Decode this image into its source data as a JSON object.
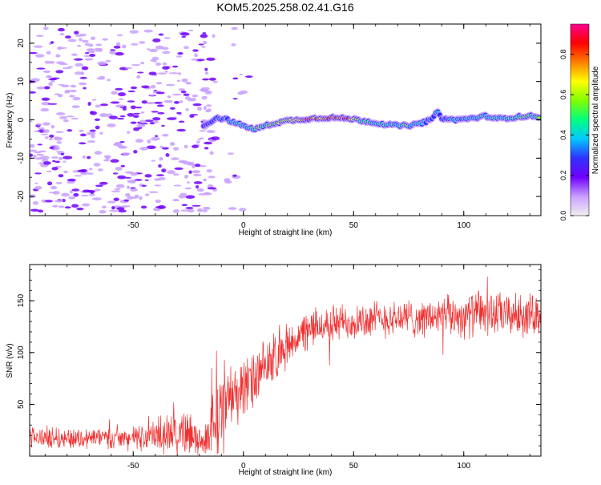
{
  "figure_title": "KOM5.2025.258.02.41.G16",
  "colors": {
    "snr_line": "#f03030",
    "colormap": [
      "#f0f0f0",
      "#c8a0ff",
      "#7000ff",
      "#3030ff",
      "#00c8ff",
      "#00ff80",
      "#80ff00",
      "#ffff00",
      "#ff8000",
      "#ff0000",
      "#ff0090"
    ]
  },
  "chart_data": [
    {
      "type": "heatmap",
      "title": "KOM5.2025.258.02.41.G16",
      "xlabel": "Height of straight line (km)",
      "ylabel": "Frequency (Hz)",
      "xlim": [
        -97,
        135
      ],
      "ylim": [
        -25,
        25
      ],
      "x_ticks": [
        -50,
        0,
        50,
        100
      ],
      "x_tick_labels": [
        "-50",
        "0",
        "50",
        "100"
      ],
      "y_ticks": [
        -20,
        -10,
        0,
        10,
        20
      ],
      "y_tick_labels": [
        "-20",
        "-10",
        "0",
        "10",
        "20"
      ],
      "colorbar": {
        "label": "Normalized spectral amplitude",
        "range": [
          0,
          0.95
        ],
        "ticks": [
          0,
          0.2,
          0.4,
          0.6,
          0.8
        ],
        "tick_labels": [
          "0.0",
          "0.2",
          "0.4",
          "0.6",
          "0.8"
        ]
      },
      "ridge": {
        "x": [
          -18,
          -15,
          -12,
          -8,
          -4,
          0,
          5,
          10,
          15,
          20,
          25,
          30,
          35,
          40,
          45,
          50,
          55,
          60,
          65,
          70,
          75,
          80,
          85,
          88,
          90,
          95,
          100,
          105,
          110,
          115,
          120,
          125,
          130,
          135
        ],
        "freq": [
          -1.5,
          -0.5,
          0.5,
          0.2,
          -0.8,
          -1.5,
          -2.5,
          -1.5,
          -0.8,
          -0.2,
          0,
          0.3,
          0.5,
          0.6,
          0.4,
          0.2,
          -0.3,
          -0.8,
          -1.2,
          -1.5,
          -1.5,
          -1,
          0,
          2,
          0.5,
          0,
          0.2,
          0.5,
          1,
          0.3,
          0.5,
          0.8,
          1,
          0.8
        ],
        "amplitude": [
          0.2,
          0.25,
          0.3,
          0.35,
          0.4,
          0.45,
          0.5,
          0.5,
          0.55,
          0.6,
          0.65,
          0.85,
          0.7,
          0.85,
          0.88,
          0.6,
          0.55,
          0.45,
          0.45,
          0.45,
          0.5,
          0.45,
          0.3,
          0.35,
          0.3,
          0.35,
          0.35,
          0.4,
          0.45,
          0.4,
          0.45,
          0.5,
          0.55,
          0.45
        ]
      }
    },
    {
      "type": "line",
      "xlabel": "Height of straight line (km)",
      "ylabel": "SNR (v/v)",
      "xlim": [
        -97,
        135
      ],
      "ylim": [
        0,
        185
      ],
      "x_ticks": [
        -50,
        0,
        50,
        100
      ],
      "x_tick_labels": [
        "-50",
        "0",
        "50",
        "100"
      ],
      "y_ticks": [
        50,
        100,
        150
      ],
      "y_tick_labels": [
        "50",
        "100",
        "150"
      ],
      "series": [
        {
          "name": "SNR",
          "x": [
            -97,
            -85,
            -75,
            -65,
            -55,
            -45,
            -40,
            -35,
            -30,
            -25,
            -20,
            -18,
            -15,
            -12,
            -10,
            -5,
            0,
            5,
            10,
            15,
            20,
            25,
            30,
            35,
            40,
            50,
            60,
            70,
            80,
            90,
            100,
            110,
            120,
            130,
            135
          ],
          "mean": [
            18,
            18,
            17,
            18,
            17,
            18,
            20,
            22,
            24,
            22,
            15,
            12,
            25,
            40,
            45,
            60,
            65,
            72,
            85,
            95,
            108,
            115,
            122,
            126,
            128,
            130,
            132,
            134,
            133,
            135,
            136,
            138,
            136,
            137,
            138
          ],
          "spread": [
            10,
            10,
            10,
            10,
            10,
            12,
            15,
            18,
            20,
            22,
            15,
            12,
            25,
            35,
            35,
            30,
            30,
            28,
            25,
            22,
            20,
            18,
            18,
            18,
            18,
            18,
            18,
            18,
            18,
            18,
            20,
            22,
            20,
            20,
            18
          ]
        }
      ]
    }
  ]
}
